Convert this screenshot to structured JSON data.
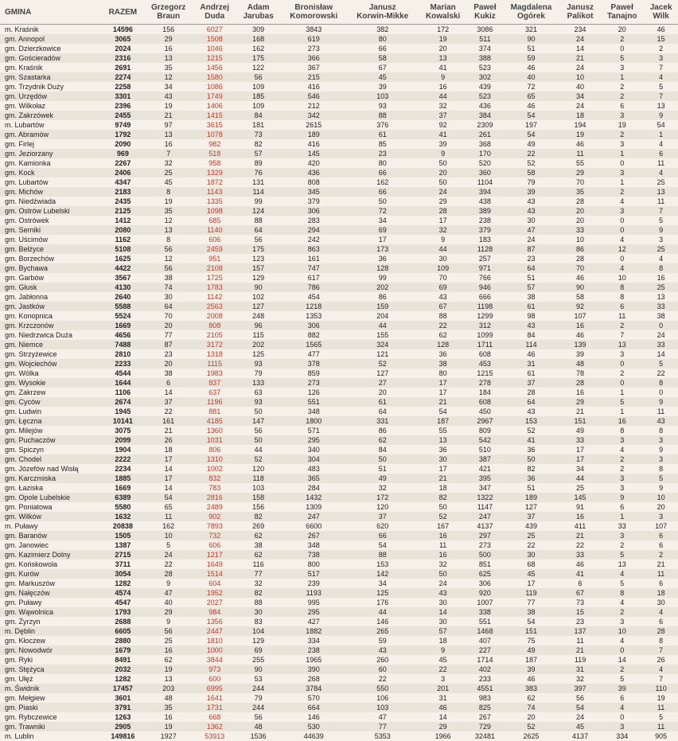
{
  "columns": [
    "GMINA",
    "RAZEM",
    "Grzegorz Braun",
    "Andrzej Duda",
    "Adam Jarubas",
    "Bronisław Komorowski",
    "Janusz Korwin-Mikke",
    "Marian Kowalski",
    "Paweł Kukiz",
    "Magdalena Ogórek",
    "Janusz Palikot",
    "Paweł Tanajno",
    "Jacek Wilk"
  ],
  "duda_col": 3,
  "rows": [
    [
      "m. Kraśnik",
      14596,
      156,
      6027,
      309,
      3843,
      382,
      172,
      3086,
      321,
      234,
      20,
      46
    ],
    [
      "gm. Annopol",
      3065,
      29,
      1508,
      168,
      619,
      80,
      19,
      511,
      90,
      24,
      2,
      15
    ],
    [
      "gm. Dzierzkowice",
      2024,
      16,
      1046,
      162,
      273,
      66,
      20,
      374,
      51,
      14,
      0,
      2
    ],
    [
      "gm. Gościeradów",
      2316,
      13,
      1215,
      175,
      366,
      58,
      13,
      388,
      59,
      21,
      5,
      3
    ],
    [
      "gm. Kraśnik",
      2691,
      35,
      1456,
      122,
      367,
      67,
      41,
      523,
      46,
      24,
      3,
      7
    ],
    [
      "gm. Szastarka",
      2274,
      12,
      1580,
      56,
      215,
      45,
      9,
      302,
      40,
      10,
      1,
      4
    ],
    [
      "gm. Trzydnik Duży",
      2258,
      34,
      1086,
      109,
      416,
      39,
      16,
      439,
      72,
      40,
      2,
      5
    ],
    [
      "gm. Urzędów",
      3301,
      43,
      1749,
      185,
      546,
      103,
      44,
      523,
      65,
      34,
      2,
      7
    ],
    [
      "gm. Wilkołaz",
      2396,
      19,
      1406,
      109,
      212,
      93,
      32,
      436,
      46,
      24,
      6,
      13
    ],
    [
      "gm. Zakrzówek",
      2455,
      21,
      1415,
      84,
      342,
      88,
      37,
      384,
      54,
      18,
      3,
      9
    ],
    [
      "m. Lubartów",
      9749,
      97,
      3615,
      181,
      2615,
      376,
      92,
      2309,
      197,
      194,
      19,
      54
    ],
    [
      "gm. Abramów",
      1792,
      13,
      1078,
      73,
      189,
      61,
      41,
      261,
      54,
      19,
      2,
      1
    ],
    [
      "gm. Firlej",
      2090,
      16,
      982,
      82,
      416,
      85,
      39,
      368,
      49,
      46,
      3,
      4
    ],
    [
      "gm. Jeziorzany",
      969,
      7,
      518,
      57,
      145,
      23,
      9,
      170,
      22,
      11,
      1,
      6
    ],
    [
      "gm. Kamionka",
      2267,
      32,
      958,
      89,
      420,
      80,
      50,
      520,
      52,
      55,
      0,
      11
    ],
    [
      "gm. Kock",
      2406,
      25,
      1329,
      76,
      436,
      66,
      20,
      360,
      58,
      29,
      3,
      4
    ],
    [
      "gm. Lubartów",
      4347,
      45,
      1872,
      131,
      808,
      162,
      50,
      1104,
      79,
      70,
      1,
      25
    ],
    [
      "gm. Michów",
      2183,
      8,
      1143,
      114,
      345,
      66,
      24,
      394,
      39,
      35,
      2,
      13
    ],
    [
      "gm. Niedźwiada",
      2435,
      19,
      1335,
      99,
      379,
      50,
      29,
      438,
      43,
      28,
      4,
      11
    ],
    [
      "gm. Ostrów Lubelski",
      2125,
      35,
      1098,
      124,
      306,
      72,
      28,
      389,
      43,
      20,
      3,
      7
    ],
    [
      "gm. Ostrówek",
      1412,
      12,
      685,
      88,
      283,
      34,
      17,
      238,
      30,
      20,
      0,
      5
    ],
    [
      "gm. Serniki",
      2080,
      13,
      1140,
      64,
      294,
      69,
      32,
      379,
      47,
      33,
      0,
      9
    ],
    [
      "gm. Uścimów",
      1162,
      8,
      606,
      56,
      242,
      17,
      9,
      183,
      24,
      10,
      4,
      3
    ],
    [
      "gm. Bełżyce",
      5108,
      56,
      2459,
      175,
      863,
      173,
      44,
      1128,
      87,
      86,
      12,
      25
    ],
    [
      "gm. Borzechów",
      1625,
      12,
      951,
      123,
      161,
      36,
      30,
      257,
      23,
      28,
      0,
      4
    ],
    [
      "gm. Bychawa",
      4422,
      56,
      2108,
      157,
      747,
      128,
      109,
      971,
      64,
      70,
      4,
      8
    ],
    [
      "gm. Garbów",
      3567,
      38,
      1725,
      129,
      617,
      99,
      70,
      766,
      51,
      46,
      10,
      16
    ],
    [
      "gm. Głusk",
      4130,
      74,
      1783,
      90,
      786,
      202,
      69,
      946,
      57,
      90,
      8,
      25
    ],
    [
      "gm. Jabłonna",
      2640,
      30,
      1142,
      102,
      454,
      86,
      43,
      666,
      38,
      58,
      8,
      13
    ],
    [
      "gm. Jastków",
      5588,
      64,
      2563,
      127,
      1218,
      159,
      67,
      1198,
      61,
      92,
      6,
      33
    ],
    [
      "gm. Konopnica",
      5524,
      70,
      2008,
      248,
      1353,
      204,
      88,
      1299,
      98,
      107,
      11,
      38
    ],
    [
      "gm. Krzczonów",
      1669,
      20,
      808,
      96,
      306,
      44,
      22,
      312,
      43,
      16,
      2,
      0
    ],
    [
      "gm. Niedrzwica Duża",
      4656,
      77,
      2105,
      115,
      882,
      155,
      62,
      1099,
      84,
      46,
      7,
      24
    ],
    [
      "gm. Niemce",
      7488,
      87,
      3172,
      202,
      1565,
      324,
      128,
      1711,
      114,
      139,
      13,
      33
    ],
    [
      "gm. Strzyżewice",
      2810,
      23,
      1318,
      125,
      477,
      121,
      36,
      608,
      46,
      39,
      3,
      14
    ],
    [
      "gm. Wojciechów",
      2233,
      20,
      1115,
      93,
      378,
      52,
      38,
      453,
      31,
      48,
      0,
      5
    ],
    [
      "gm. Wólka",
      4544,
      38,
      1983,
      79,
      859,
      127,
      80,
      1215,
      61,
      78,
      2,
      22
    ],
    [
      "gm. Wysokie",
      1644,
      6,
      837,
      133,
      273,
      27,
      17,
      278,
      37,
      28,
      0,
      8
    ],
    [
      "gm. Zakrzew",
      1106,
      14,
      637,
      63,
      126,
      20,
      17,
      184,
      28,
      16,
      1,
      0
    ],
    [
      "gm. Cyców",
      2674,
      37,
      1196,
      93,
      551,
      61,
      21,
      608,
      64,
      29,
      5,
      9
    ],
    [
      "gm. Ludwin",
      1945,
      22,
      881,
      50,
      348,
      64,
      54,
      450,
      43,
      21,
      1,
      11
    ],
    [
      "gm. Łęczna",
      10141,
      161,
      4185,
      147,
      1800,
      331,
      187,
      2967,
      153,
      151,
      16,
      43
    ],
    [
      "gm. Milejów",
      3075,
      21,
      1360,
      56,
      571,
      86,
      55,
      809,
      52,
      49,
      8,
      8
    ],
    [
      "gm. Puchaczów",
      2099,
      26,
      1031,
      50,
      295,
      62,
      13,
      542,
      41,
      33,
      3,
      3
    ],
    [
      "gm. Spiczyn",
      1904,
      18,
      806,
      44,
      340,
      84,
      36,
      510,
      36,
      17,
      4,
      9
    ],
    [
      "gm. Chodel",
      2222,
      17,
      1310,
      52,
      304,
      50,
      30,
      387,
      50,
      17,
      2,
      3
    ],
    [
      "gm. Józefów nad Wisłą",
      2234,
      14,
      1002,
      120,
      483,
      51,
      17,
      421,
      82,
      34,
      2,
      8
    ],
    [
      "gm. Karczmiska",
      1885,
      17,
      832,
      118,
      365,
      49,
      21,
      395,
      36,
      44,
      3,
      5
    ],
    [
      "gm. Łaziska",
      1669,
      14,
      783,
      103,
      284,
      32,
      18,
      347,
      51,
      25,
      3,
      9
    ],
    [
      "gm. Opole Lubelskie",
      6389,
      54,
      2816,
      158,
      1432,
      172,
      82,
      1322,
      189,
      145,
      9,
      10
    ],
    [
      "gm. Poniatowa",
      5580,
      65,
      2489,
      156,
      1309,
      120,
      50,
      1147,
      127,
      91,
      6,
      20
    ],
    [
      "gm. Wilków",
      1632,
      11,
      902,
      82,
      247,
      37,
      52,
      247,
      37,
      16,
      1,
      3
    ],
    [
      "m. Puławy",
      20838,
      162,
      7893,
      269,
      6600,
      620,
      167,
      4137,
      439,
      411,
      33,
      107
    ],
    [
      "gm. Baranów",
      1505,
      10,
      732,
      62,
      267,
      66,
      16,
      297,
      25,
      21,
      3,
      6
    ],
    [
      "gm. Janowiec",
      1387,
      5,
      606,
      38,
      348,
      54,
      11,
      273,
      22,
      22,
      2,
      6
    ],
    [
      "gm. Kazimierz Dolny",
      2715,
      24,
      1217,
      62,
      738,
      88,
      16,
      500,
      30,
      33,
      5,
      2
    ],
    [
      "gm. Końskowola",
      3711,
      22,
      1649,
      116,
      800,
      153,
      32,
      851,
      68,
      46,
      13,
      21
    ],
    [
      "gm. Kurów",
      3054,
      28,
      1514,
      77,
      517,
      142,
      50,
      625,
      45,
      41,
      4,
      11
    ],
    [
      "gm. Markuszów",
      1282,
      9,
      604,
      32,
      239,
      34,
      24,
      306,
      17,
      6,
      5,
      6
    ],
    [
      "gm. Nałęczów",
      4574,
      47,
      1952,
      82,
      1193,
      125,
      43,
      920,
      119,
      67,
      8,
      18
    ],
    [
      "gm. Puławy",
      4547,
      40,
      2027,
      88,
      995,
      176,
      30,
      1007,
      77,
      73,
      4,
      30
    ],
    [
      "gm. Wąwolnica",
      1793,
      29,
      984,
      30,
      295,
      44,
      14,
      338,
      38,
      15,
      2,
      4
    ],
    [
      "gm. Żyrzyn",
      2688,
      9,
      1356,
      83,
      427,
      146,
      30,
      551,
      54,
      23,
      3,
      6
    ],
    [
      "m. Dęblin",
      6605,
      56,
      2447,
      104,
      1882,
      265,
      57,
      1468,
      151,
      137,
      10,
      28
    ],
    [
      "gm. Kłoczew",
      2880,
      25,
      1810,
      129,
      334,
      59,
      18,
      407,
      75,
      11,
      4,
      8
    ],
    [
      "gm. Nowodwór",
      1679,
      16,
      1000,
      69,
      238,
      43,
      9,
      227,
      49,
      21,
      0,
      7
    ],
    [
      "gm. Ryki",
      8491,
      62,
      3844,
      255,
      1965,
      260,
      45,
      1714,
      187,
      119,
      14,
      26
    ],
    [
      "gm. Stężyca",
      2032,
      19,
      973,
      90,
      390,
      60,
      22,
      402,
      39,
      31,
      2,
      4
    ],
    [
      "gm. Ułęż",
      1282,
      13,
      600,
      53,
      268,
      22,
      3,
      233,
      46,
      32,
      5,
      7
    ],
    [
      "m. Świdnik",
      17457,
      203,
      6995,
      244,
      3784,
      550,
      201,
      4551,
      383,
      397,
      39,
      110
    ],
    [
      "gm. Mełgiew",
      3601,
      48,
      1641,
      79,
      570,
      106,
      31,
      983,
      62,
      56,
      6,
      19
    ],
    [
      "gm. Piaski",
      3791,
      35,
      1731,
      244,
      664,
      103,
      46,
      825,
      74,
      54,
      4,
      11
    ],
    [
      "gm. Rybczewice",
      1263,
      16,
      668,
      56,
      146,
      47,
      14,
      267,
      20,
      24,
      0,
      5
    ],
    [
      "gm. Trawniki",
      2905,
      19,
      1362,
      48,
      530,
      77,
      29,
      729,
      52,
      45,
      3,
      11
    ],
    [
      "m. Lublin",
      149816,
      1927,
      53913,
      1536,
      44639,
      5353,
      1966,
      32481,
      2625,
      4137,
      334,
      905
    ]
  ]
}
